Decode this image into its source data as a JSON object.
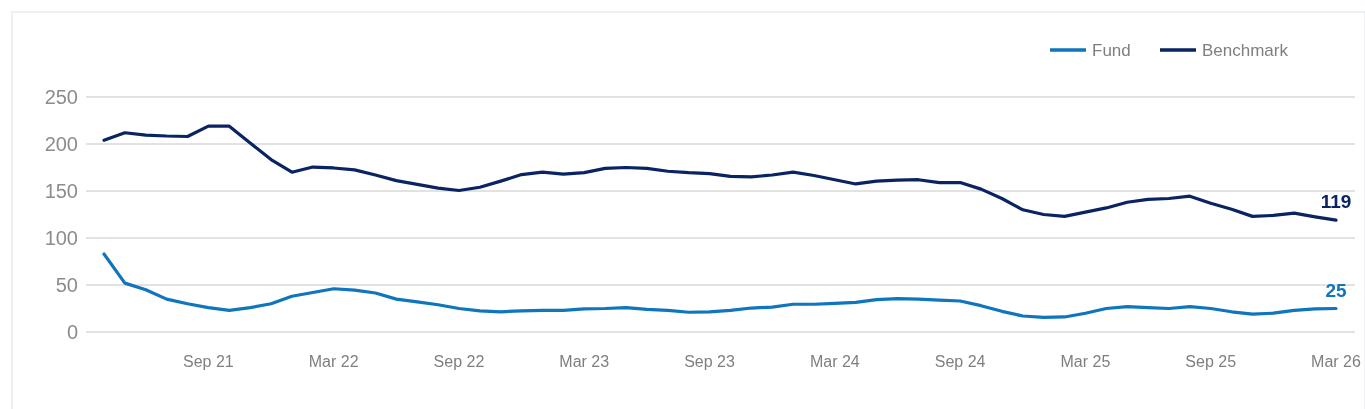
{
  "chart_data": {
    "type": "line",
    "categories": [
      null,
      null,
      null,
      null,
      null,
      "Sep 21",
      null,
      null,
      null,
      null,
      null,
      "Mar 22",
      null,
      null,
      null,
      null,
      null,
      "Sep 22",
      null,
      null,
      null,
      null,
      null,
      "Mar 23",
      null,
      null,
      null,
      null,
      null,
      "Sep 23",
      null,
      null,
      null,
      null,
      null,
      "Mar 24",
      null,
      null,
      null,
      null,
      null,
      "Sep 24",
      null,
      null,
      null,
      null,
      null,
      "Mar 25",
      null,
      null,
      null,
      null,
      null,
      "Sep 25",
      null,
      null,
      null,
      null,
      null,
      "Mar 26"
    ],
    "series": [
      {
        "name": "Fund",
        "color": "#0f75bc",
        "values": [
          83,
          52,
          45,
          35,
          30,
          26,
          23,
          26,
          30,
          38,
          42,
          46,
          44.5,
          41.5,
          35,
          32,
          29,
          25,
          22.5,
          21.5,
          22.5,
          23,
          23,
          24.5,
          25,
          26,
          24,
          23,
          21,
          21.5,
          23,
          25.5,
          26.5,
          29.5,
          29.5,
          30.5,
          31.5,
          34.5,
          35.5,
          35,
          34,
          33,
          28,
          22,
          17,
          15.5,
          16,
          20,
          25,
          27,
          26,
          25,
          27,
          25,
          21.5,
          19,
          20,
          23,
          24.5,
          25
        ],
        "value_labels": [
          null,
          null,
          null,
          null,
          null,
          null,
          null,
          null,
          null,
          null,
          null,
          null,
          null,
          null,
          null,
          null,
          null,
          null,
          null,
          null,
          null,
          null,
          null,
          null,
          null,
          null,
          null,
          null,
          null,
          null,
          null,
          null,
          null,
          null,
          null,
          null,
          null,
          null,
          null,
          null,
          null,
          null,
          null,
          null,
          null,
          null,
          null,
          null,
          null,
          null,
          null,
          null,
          null,
          null,
          null,
          null,
          null,
          null,
          null,
          "25"
        ]
      },
      {
        "name": "Benchmark",
        "color": "#0a2463",
        "values": [
          204,
          212,
          209.5,
          208.5,
          208,
          219,
          219,
          201,
          183.5,
          170,
          175.5,
          174.5,
          172.5,
          167,
          161,
          157,
          153,
          150.5,
          154,
          160.5,
          167.5,
          170,
          168,
          169.5,
          174,
          175,
          174,
          171,
          169.5,
          168.5,
          165.5,
          165,
          167,
          170,
          166.5,
          162,
          157.5,
          160.5,
          161.5,
          162,
          159,
          159,
          152,
          142,
          130,
          125,
          123,
          127.5,
          132,
          138,
          141,
          142,
          144.5,
          137,
          130.5,
          123,
          124,
          126.5,
          122.5,
          119
        ],
        "value_labels": [
          null,
          null,
          null,
          null,
          null,
          null,
          null,
          null,
          null,
          null,
          null,
          null,
          null,
          null,
          null,
          null,
          null,
          null,
          null,
          null,
          null,
          null,
          null,
          null,
          null,
          null,
          null,
          null,
          null,
          null,
          null,
          null,
          null,
          null,
          null,
          null,
          null,
          null,
          null,
          null,
          null,
          null,
          null,
          null,
          null,
          null,
          null,
          null,
          null,
          null,
          null,
          null,
          null,
          null,
          null,
          null,
          null,
          null,
          null,
          "119"
        ]
      }
    ],
    "ylim": [
      0,
      250
    ],
    "yticks": [
      0,
      50,
      100,
      150,
      200,
      250
    ],
    "grid": "y",
    "legend": "top right",
    "marker": "none",
    "line_style": "solid"
  }
}
